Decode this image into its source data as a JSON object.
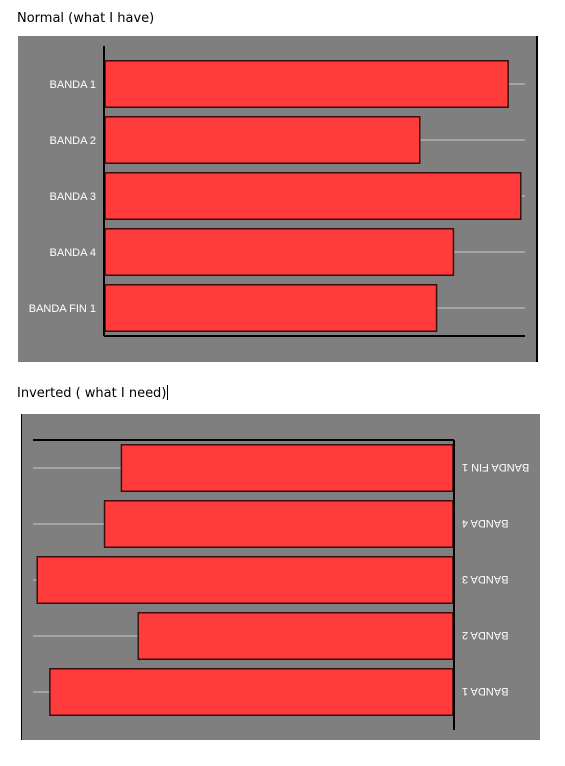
{
  "captions": {
    "normal": "Normal (what I have)",
    "inverted": "Inverted ( what I need)"
  },
  "colors": {
    "panel_background": "#7f7f7f",
    "bar_fill": "#ff3b3b",
    "bar_stroke": "#3a1010",
    "gridline": "#b0b0b0",
    "axis": "#000000",
    "label_text": "#ffffff"
  },
  "chart_data": [
    {
      "type": "bar",
      "orientation": "horizontal",
      "title": "",
      "categories": [
        "BANDA 1",
        "BANDA 2",
        "BANDA 3",
        "BANDA 4",
        "BANDA FIN 1"
      ],
      "values": [
        96,
        75,
        99,
        83,
        79
      ],
      "xlim": [
        0,
        100
      ],
      "grid": "horizontal lines at each category",
      "legend": "none"
    },
    {
      "type": "bar",
      "orientation": "horizontal",
      "inverted": "rotated 180 degrees",
      "title": "",
      "categories": [
        "BANDA 1",
        "BANDA 2",
        "BANDA 3",
        "BANDA 4",
        "BANDA FIN 1"
      ],
      "values": [
        96,
        75,
        99,
        83,
        79
      ],
      "xlim": [
        0,
        100
      ],
      "grid": "horizontal lines at each category",
      "legend": "none"
    }
  ]
}
